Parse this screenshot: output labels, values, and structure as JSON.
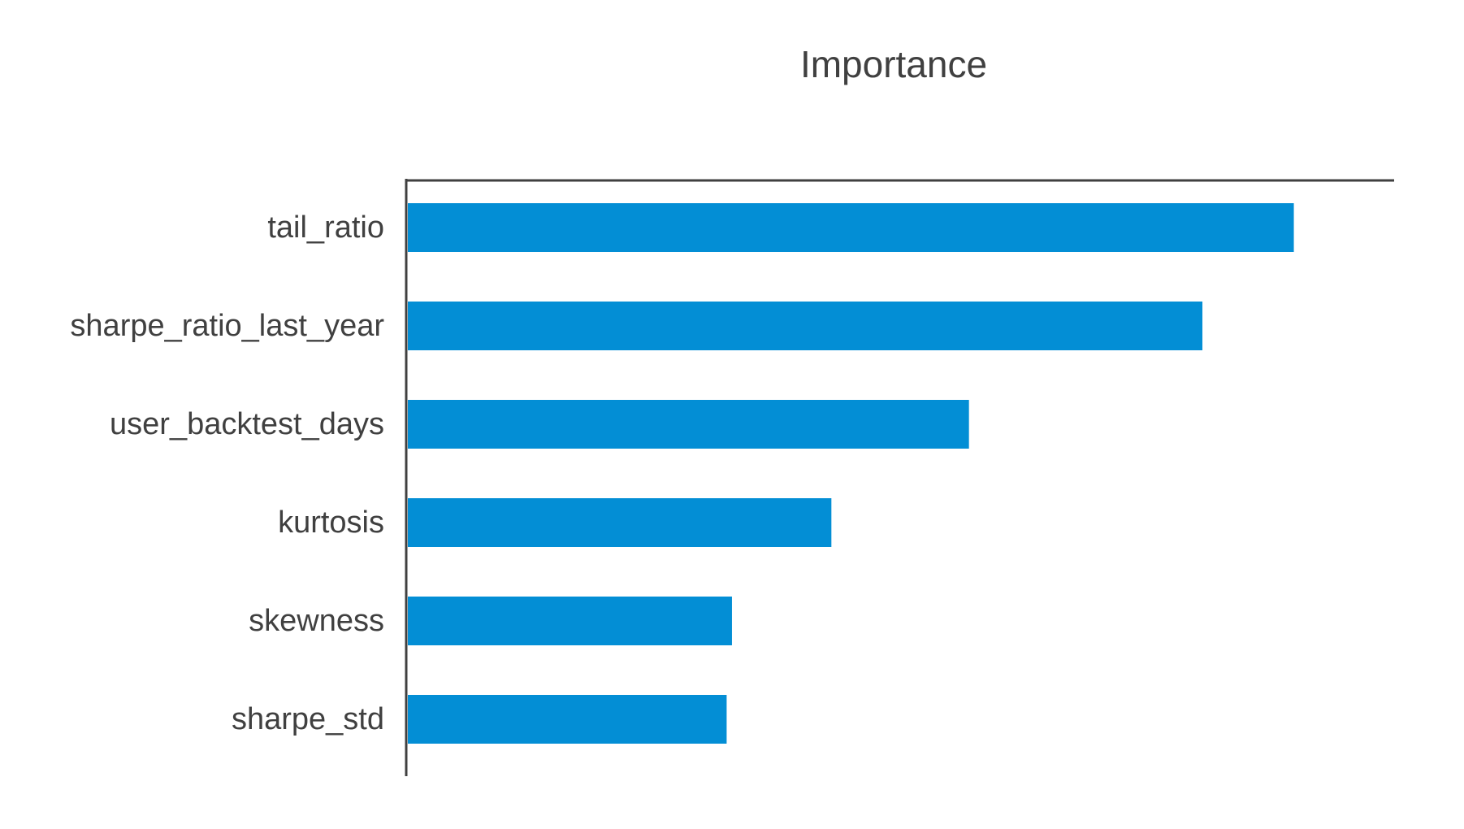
{
  "chart_data": {
    "type": "bar",
    "orientation": "horizontal",
    "title": "Importance",
    "xlabel": "",
    "ylabel": "",
    "categories": [
      "tail_ratio",
      "sharpe_ratio_last_year",
      "user_backtest_days",
      "kurtosis",
      "skewness",
      "sharpe_std"
    ],
    "values": [
      1.0,
      0.897,
      0.634,
      0.479,
      0.367,
      0.361
    ],
    "xlim": [
      0,
      1.113
    ],
    "grid": false,
    "legend": "none",
    "bar_color": "#038ed5",
    "axis_color": "#404040"
  }
}
